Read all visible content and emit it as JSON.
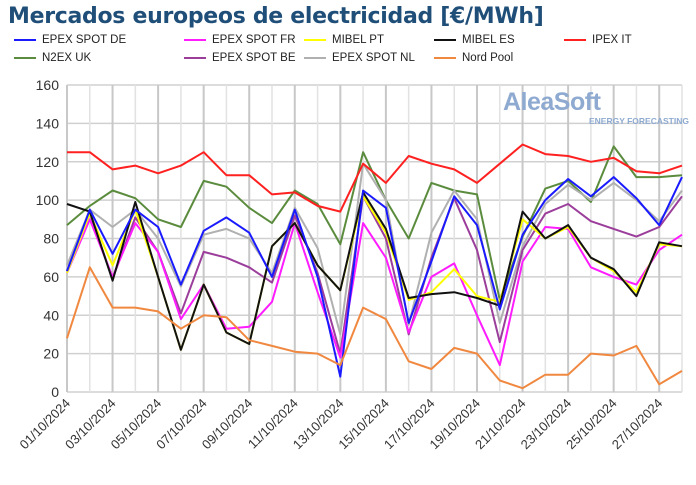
{
  "chart_data": {
    "type": "line",
    "title": "Mercados europeos de electricidad [€/MWh]",
    "ylim": [
      0,
      160
    ],
    "yticks": [
      0,
      20,
      40,
      60,
      80,
      100,
      120,
      140,
      160
    ],
    "grid": true,
    "legend_position": "top",
    "x": [
      "01/10/2024",
      "02/10/2024",
      "03/10/2024",
      "04/10/2024",
      "05/10/2024",
      "06/10/2024",
      "07/10/2024",
      "08/10/2024",
      "09/10/2024",
      "10/10/2024",
      "11/10/2024",
      "12/10/2024",
      "13/10/2024",
      "14/10/2024",
      "15/10/2024",
      "16/10/2024",
      "17/10/2024",
      "18/10/2024",
      "19/10/2024",
      "20/10/2024",
      "21/10/2024",
      "22/10/2024",
      "23/10/2024",
      "24/10/2024",
      "25/10/2024",
      "26/10/2024",
      "27/10/2024",
      "28/10/2024"
    ],
    "xtick_labels": [
      "01/10/2024",
      "03/10/2024",
      "05/10/2024",
      "07/10/2024",
      "09/10/2024",
      "11/10/2024",
      "13/10/2024",
      "15/10/2024",
      "17/10/2024",
      "19/10/2024",
      "21/10/2024",
      "23/10/2024",
      "25/10/2024",
      "27/10/2024"
    ],
    "series": [
      {
        "name": "N2EX UK",
        "color": "#5b8c3e",
        "values": [
          87,
          97,
          105,
          101,
          90,
          86,
          110,
          107,
          96,
          88,
          105,
          98,
          77,
          125,
          100,
          80,
          109,
          105,
          103,
          48,
          81,
          106,
          110,
          99,
          128,
          112,
          112,
          113
        ]
      },
      {
        "name": "EPEX SPOT NL",
        "color": "#b0b0b0",
        "values": [
          66,
          95,
          86,
          95,
          80,
          55,
          82,
          85,
          80,
          62,
          96,
          75,
          30,
          119,
          100,
          35,
          83,
          105,
          90,
          36,
          76,
          98,
          108,
          100,
          109,
          100,
          89,
          105
        ]
      },
      {
        "name": "EPEX SPOT BE",
        "color": "#9b3e9b",
        "values": [
          63,
          93,
          59,
          91,
          73,
          41,
          73,
          70,
          65,
          57,
          92,
          62,
          20,
          102,
          80,
          30,
          70,
          101,
          74,
          26,
          74,
          93,
          98,
          89,
          85,
          81,
          86,
          102
        ]
      },
      {
        "name": "EPEX SPOT FR",
        "color": "#ff1cff",
        "values": [
          62,
          90,
          60,
          88,
          73,
          38,
          56,
          33,
          34,
          47,
          88,
          52,
          18,
          88,
          70,
          31,
          60,
          67,
          40,
          14,
          68,
          86,
          85,
          65,
          60,
          56,
          74,
          82
        ]
      },
      {
        "name": "MIBEL PT",
        "color": "#ffff00",
        "values": [
          62,
          93,
          66,
          95,
          60,
          22,
          56,
          31,
          25,
          76,
          88,
          66,
          53,
          102,
          83,
          48,
          52,
          64,
          50,
          47,
          90,
          80,
          86,
          70,
          63,
          52,
          77,
          76
        ]
      },
      {
        "name": "MIBEL ES",
        "color": "#111111",
        "values": [
          98,
          94,
          58,
          99,
          60,
          22,
          56,
          31,
          25,
          76,
          88,
          66,
          53,
          104,
          85,
          49,
          51,
          52,
          49,
          45,
          94,
          80,
          87,
          70,
          64,
          50,
          78,
          76
        ]
      },
      {
        "name": "EPEX SPOT DE",
        "color": "#1a1aff",
        "values": [
          63,
          95,
          72,
          95,
          86,
          56,
          84,
          91,
          83,
          60,
          95,
          60,
          8,
          105,
          96,
          36,
          68,
          102,
          87,
          43,
          82,
          100,
          111,
          102,
          112,
          101,
          87,
          112
        ]
      },
      {
        "name": "IPEX IT",
        "color": "#ff2020",
        "values": [
          125,
          125,
          116,
          118,
          114,
          118,
          125,
          113,
          113,
          103,
          104,
          97,
          94,
          119,
          109,
          123,
          119,
          116,
          109,
          119,
          129,
          124,
          123,
          120,
          122,
          115,
          114,
          118
        ]
      },
      {
        "name": "Nord Pool",
        "color": "#f08840",
        "values": [
          28,
          65,
          44,
          44,
          42,
          33,
          40,
          39,
          27,
          24,
          21,
          20,
          14,
          44,
          38,
          16,
          12,
          23,
          20,
          6,
          2,
          9,
          9,
          20,
          19,
          24,
          4,
          11
        ]
      }
    ],
    "legend_order": [
      "EPEX SPOT DE",
      "EPEX SPOT FR",
      "MIBEL PT",
      "MIBEL ES",
      "IPEX IT",
      "N2EX UK",
      "EPEX SPOT BE",
      "EPEX SPOT NL",
      "Nord Pool"
    ]
  },
  "watermark": {
    "brand": "AleaSoft",
    "tagline": "ENERGY FORECASTING"
  }
}
